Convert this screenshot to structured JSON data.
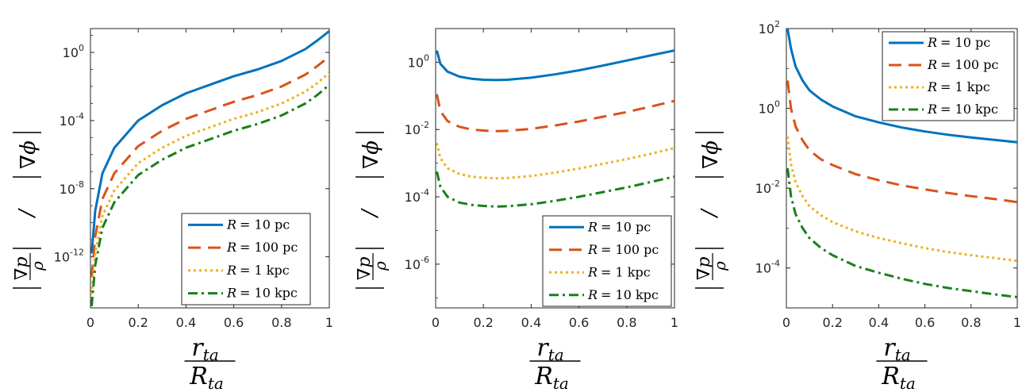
{
  "chart_data": [
    {
      "type": "line",
      "yscale": "log",
      "xlim": [
        0,
        1
      ],
      "ylim_exp": [
        -15,
        1.4
      ],
      "xticks": [
        "0",
        "0.2",
        "0.4",
        "0.6",
        "0.8",
        "1"
      ],
      "yticks": [
        {
          "base": "10",
          "exp": "0",
          "value": 0
        },
        {
          "base": "10",
          "exp": "-4",
          "value": -4
        },
        {
          "base": "10",
          "exp": "-8",
          "value": -8
        },
        {
          "base": "10",
          "exp": "-12",
          "value": -12
        }
      ],
      "xlabel": {
        "num": "r",
        "num_sub": "ta",
        "den": "R",
        "den_sub": "ta"
      },
      "ylabel": {
        "grad": "∇",
        "p": "p",
        "rho": "ρ",
        "slash": "/",
        "phi": "ϕ"
      },
      "legend_position": "bottom-right",
      "series": [
        {
          "name": "R = 10 pc",
          "label_var": "R",
          "label_eq": "= 10 pc",
          "color": "#0072BD",
          "dash": "solid",
          "x": [
            0.005,
            0.02,
            0.05,
            0.1,
            0.2,
            0.3,
            0.4,
            0.5,
            0.6,
            0.7,
            0.8,
            0.9,
            0.95,
            1.0
          ],
          "log_y": [
            -11.8,
            -9.3,
            -7.1,
            -5.6,
            -4.0,
            -3.1,
            -2.4,
            -1.9,
            -1.4,
            -1.0,
            -0.5,
            0.2,
            0.7,
            1.25
          ]
        },
        {
          "name": "R = 100 pc",
          "label_var": "R",
          "label_eq": "= 100 pc",
          "color": "#D95319",
          "dash": "dashed",
          "x": [
            0.005,
            0.02,
            0.05,
            0.1,
            0.2,
            0.3,
            0.4,
            0.5,
            0.6,
            0.7,
            0.8,
            0.9,
            0.95,
            1.0
          ],
          "log_y": [
            -13.2,
            -10.8,
            -8.6,
            -7.1,
            -5.5,
            -4.6,
            -3.9,
            -3.4,
            -2.9,
            -2.5,
            -2.0,
            -1.3,
            -0.8,
            -0.25
          ]
        },
        {
          "name": "R = 1 kpc",
          "label_var": "R",
          "label_eq": "= 1 kpc",
          "color": "#EDB120",
          "dash": "dotted",
          "x": [
            0.005,
            0.02,
            0.05,
            0.1,
            0.2,
            0.3,
            0.4,
            0.5,
            0.6,
            0.7,
            0.8,
            0.9,
            0.95,
            1.0
          ],
          "log_y": [
            -14.2,
            -11.8,
            -9.6,
            -8.1,
            -6.5,
            -5.6,
            -4.9,
            -4.4,
            -3.9,
            -3.5,
            -3.0,
            -2.3,
            -1.8,
            -1.2
          ]
        },
        {
          "name": "R = 10 kpc",
          "label_var": "R",
          "label_eq": "= 10 kpc",
          "color": "#1B7F1B",
          "dash": "dashdot",
          "x": [
            0.005,
            0.02,
            0.05,
            0.1,
            0.2,
            0.3,
            0.4,
            0.5,
            0.6,
            0.7,
            0.8,
            0.9,
            0.95,
            1.0
          ],
          "log_y": [
            -14.9,
            -12.5,
            -10.3,
            -8.8,
            -7.2,
            -6.3,
            -5.6,
            -5.1,
            -4.6,
            -4.2,
            -3.7,
            -3.0,
            -2.5,
            -1.9
          ]
        }
      ]
    },
    {
      "type": "line",
      "yscale": "log",
      "xlim": [
        0,
        1
      ],
      "ylim_exp": [
        -7.3,
        1.0
      ],
      "xticks": [
        "0",
        "0.2",
        "0.4",
        "0.6",
        "0.8",
        "1"
      ],
      "yticks": [
        {
          "base": "10",
          "exp": "0",
          "value": 0
        },
        {
          "base": "10",
          "exp": "-2",
          "value": -2
        },
        {
          "base": "10",
          "exp": "-4",
          "value": -4
        },
        {
          "base": "10",
          "exp": "-6",
          "value": -6
        }
      ],
      "xlabel": {
        "num": "r",
        "num_sub": "ta",
        "den": "R",
        "den_sub": "ta"
      },
      "ylabel": {
        "grad": "∇",
        "p": "p",
        "rho": "ρ",
        "slash": "/",
        "phi": "ϕ"
      },
      "legend_position": "bottom-right",
      "series": [
        {
          "name": "R = 10 pc",
          "label_var": "R",
          "label_eq": "= 10 pc",
          "color": "#0072BD",
          "dash": "solid",
          "x": [
            0.005,
            0.02,
            0.05,
            0.1,
            0.15,
            0.2,
            0.25,
            0.3,
            0.4,
            0.5,
            0.6,
            0.7,
            0.8,
            0.9,
            1.0
          ],
          "log_y": [
            0.35,
            -0.05,
            -0.28,
            -0.43,
            -0.49,
            -0.52,
            -0.53,
            -0.52,
            -0.46,
            -0.36,
            -0.24,
            -0.1,
            0.05,
            0.2,
            0.35
          ]
        },
        {
          "name": "R = 100 pc",
          "label_var": "R",
          "label_eq": "= 100 pc",
          "color": "#D95319",
          "dash": "dashed",
          "x": [
            0.005,
            0.02,
            0.05,
            0.1,
            0.15,
            0.2,
            0.25,
            0.3,
            0.4,
            0.5,
            0.6,
            0.7,
            0.8,
            0.9,
            1.0
          ],
          "log_y": [
            -0.95,
            -1.45,
            -1.75,
            -1.92,
            -2.0,
            -2.03,
            -2.05,
            -2.04,
            -1.98,
            -1.88,
            -1.76,
            -1.62,
            -1.48,
            -1.32,
            -1.15
          ]
        },
        {
          "name": "R = 1 kpc",
          "label_var": "R",
          "label_eq": "= 1 kpc",
          "color": "#EDB120",
          "dash": "dotted",
          "x": [
            0.005,
            0.02,
            0.05,
            0.1,
            0.15,
            0.2,
            0.25,
            0.3,
            0.4,
            0.5,
            0.6,
            0.7,
            0.8,
            0.9,
            1.0
          ],
          "log_y": [
            -2.4,
            -2.85,
            -3.15,
            -3.32,
            -3.4,
            -3.43,
            -3.45,
            -3.44,
            -3.38,
            -3.28,
            -3.16,
            -3.02,
            -2.88,
            -2.72,
            -2.55
          ]
        },
        {
          "name": "R = 10 kpc",
          "label_var": "R",
          "label_eq": "= 10 kpc",
          "color": "#1B7F1B",
          "dash": "dashdot",
          "x": [
            0.005,
            0.02,
            0.05,
            0.1,
            0.15,
            0.2,
            0.25,
            0.3,
            0.4,
            0.5,
            0.6,
            0.7,
            0.8,
            0.9,
            1.0
          ],
          "log_y": [
            -3.25,
            -3.7,
            -4.0,
            -4.17,
            -4.24,
            -4.27,
            -4.29,
            -4.28,
            -4.22,
            -4.12,
            -4.0,
            -3.86,
            -3.72,
            -3.56,
            -3.4
          ]
        }
      ]
    },
    {
      "type": "line",
      "yscale": "log",
      "xlim": [
        0,
        1
      ],
      "ylim_exp": [
        -5.0,
        2.0
      ],
      "xticks": [
        "0",
        "0.2",
        "0.4",
        "0.6",
        "0.8",
        "1"
      ],
      "yticks": [
        {
          "base": "10",
          "exp": "2",
          "value": 2
        },
        {
          "base": "10",
          "exp": "0",
          "value": 0
        },
        {
          "base": "10",
          "exp": "-2",
          "value": -2
        },
        {
          "base": "10",
          "exp": "-4",
          "value": -4
        }
      ],
      "xlabel": {
        "num": "r",
        "num_sub": "ta",
        "den": "R",
        "den_sub": "ta"
      },
      "ylabel": {
        "grad": "∇",
        "p": "p",
        "rho": "ρ",
        "slash": "/",
        "phi": "ϕ"
      },
      "legend_position": "top-right",
      "series": [
        {
          "name": "R = 10 pc",
          "label_var": "R",
          "label_eq": "= 10 pc",
          "color": "#0072BD",
          "dash": "solid",
          "x": [
            0.005,
            0.02,
            0.04,
            0.07,
            0.1,
            0.15,
            0.2,
            0.3,
            0.4,
            0.5,
            0.6,
            0.7,
            0.8,
            0.9,
            1.0
          ],
          "log_y": [
            2.0,
            1.5,
            1.05,
            0.7,
            0.45,
            0.22,
            0.05,
            -0.2,
            -0.35,
            -0.48,
            -0.58,
            -0.66,
            -0.73,
            -0.79,
            -0.85
          ]
        },
        {
          "name": "R = 100 pc",
          "label_var": "R",
          "label_eq": "= 100 pc",
          "color": "#D95319",
          "dash": "dashed",
          "x": [
            0.005,
            0.02,
            0.04,
            0.07,
            0.1,
            0.15,
            0.2,
            0.3,
            0.4,
            0.5,
            0.6,
            0.7,
            0.8,
            0.9,
            1.0
          ],
          "log_y": [
            0.7,
            0.0,
            -0.45,
            -0.8,
            -1.05,
            -1.28,
            -1.42,
            -1.65,
            -1.8,
            -1.93,
            -2.03,
            -2.12,
            -2.2,
            -2.27,
            -2.35
          ]
        },
        {
          "name": "R = 1 kpc",
          "label_var": "R",
          "label_eq": "= 1 kpc",
          "color": "#EDB120",
          "dash": "dotted",
          "x": [
            0.005,
            0.02,
            0.04,
            0.07,
            0.1,
            0.15,
            0.2,
            0.3,
            0.4,
            0.5,
            0.6,
            0.7,
            0.8,
            0.9,
            1.0
          ],
          "log_y": [
            -0.7,
            -1.4,
            -1.85,
            -2.2,
            -2.45,
            -2.68,
            -2.85,
            -3.08,
            -3.25,
            -3.38,
            -3.5,
            -3.6,
            -3.68,
            -3.75,
            -3.82
          ]
        },
        {
          "name": "R = 10 kpc",
          "label_var": "R",
          "label_eq": "= 10 kpc",
          "color": "#1B7F1B",
          "dash": "dashdot",
          "x": [
            0.005,
            0.02,
            0.04,
            0.07,
            0.1,
            0.15,
            0.2,
            0.3,
            0.4,
            0.5,
            0.6,
            0.7,
            0.8,
            0.9,
            1.0
          ],
          "log_y": [
            -1.5,
            -2.2,
            -2.65,
            -3.0,
            -3.25,
            -3.5,
            -3.68,
            -3.95,
            -4.12,
            -4.27,
            -4.4,
            -4.5,
            -4.58,
            -4.66,
            -4.73
          ]
        }
      ]
    }
  ]
}
